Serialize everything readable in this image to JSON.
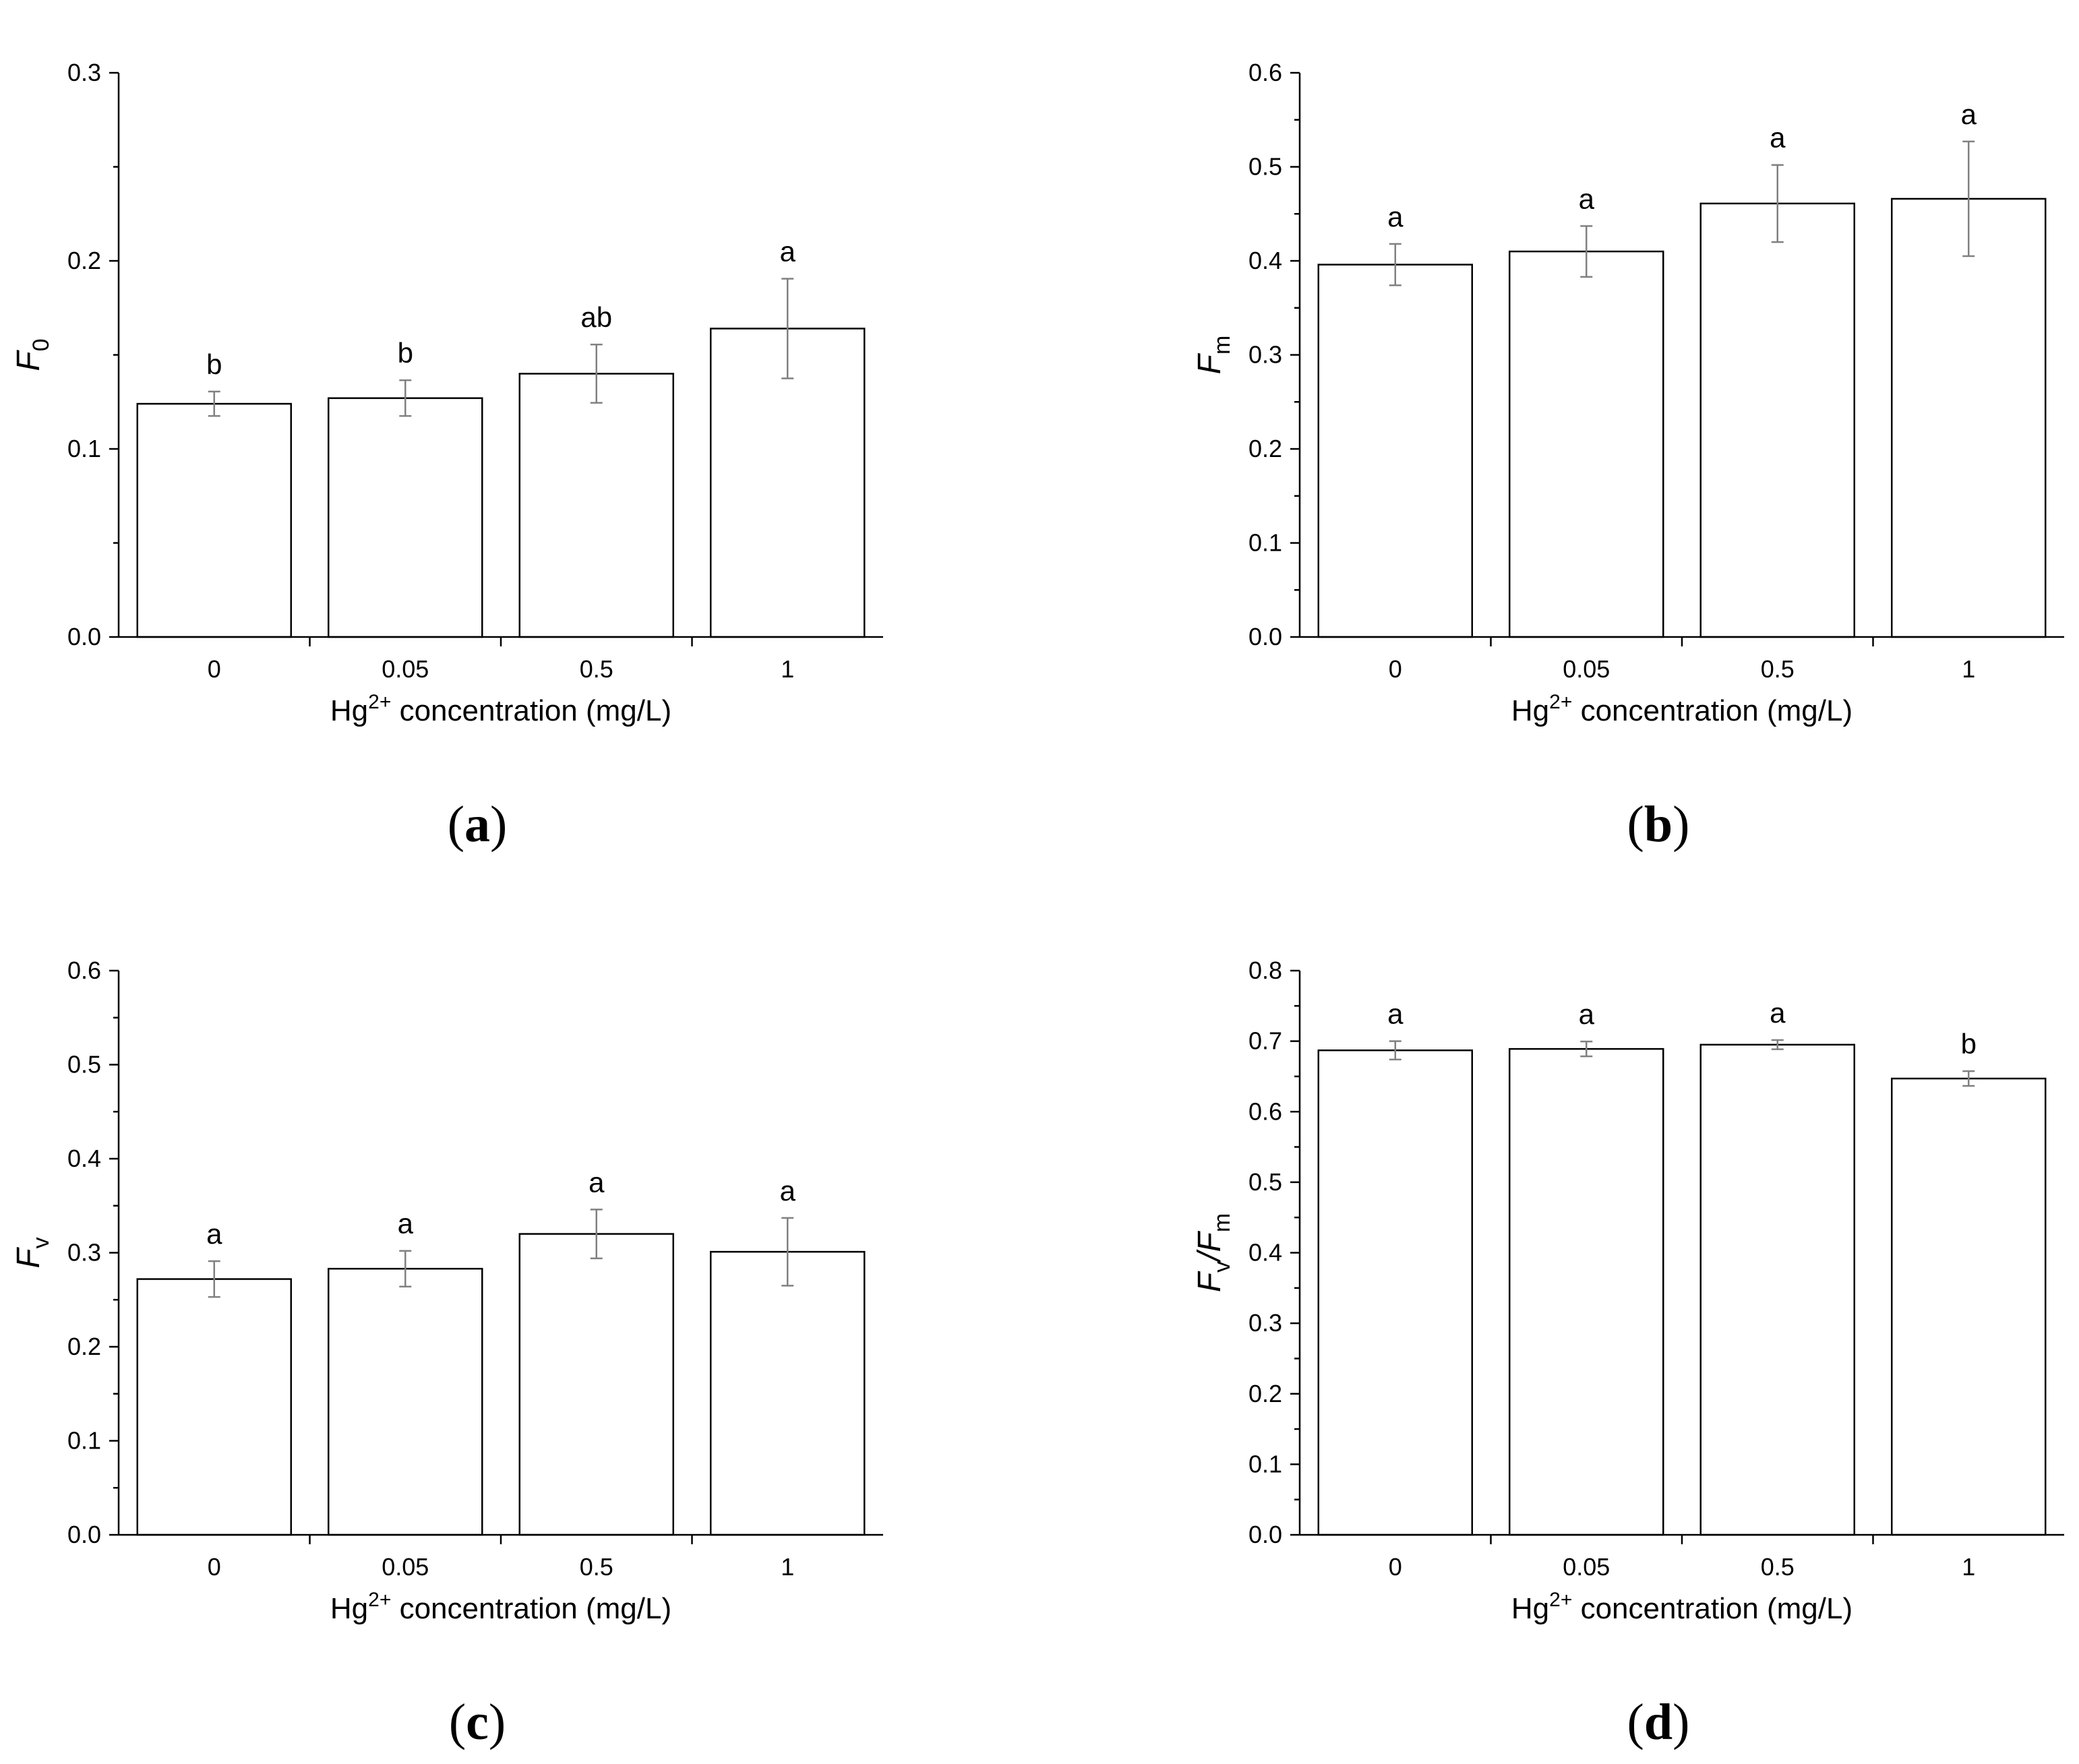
{
  "chart_data": [
    {
      "type": "bar",
      "panel_label": "a",
      "categories": [
        "0",
        "0.05",
        "0.5",
        "1"
      ],
      "values": [
        0.124,
        0.127,
        0.14,
        0.164
      ],
      "error": [
        0.0065,
        0.0095,
        0.0155,
        0.0265
      ],
      "significance": [
        "b",
        "b",
        "ab",
        "a"
      ],
      "ylabel_main": "F",
      "ylabel_sub": "0",
      "xlabel_pre": "Hg",
      "xlabel_sup": "2+",
      "xlabel_post": " concentration (mg/L)",
      "ylim": [
        0,
        0.3
      ],
      "yticks": [
        "0.0",
        "0.1",
        "0.2",
        "0.3"
      ]
    },
    {
      "type": "bar",
      "panel_label": "b",
      "categories": [
        "0",
        "0.05",
        "0.5",
        "1"
      ],
      "values": [
        0.396,
        0.41,
        0.461,
        0.466
      ],
      "error": [
        0.022,
        0.027,
        0.041,
        0.061
      ],
      "significance": [
        "a",
        "a",
        "a",
        "a"
      ],
      "ylabel_main": "F",
      "ylabel_sub": "m",
      "xlabel_pre": "Hg",
      "xlabel_sup": "2+",
      "xlabel_post": " concentration (mg/L)",
      "ylim": [
        0,
        0.6
      ],
      "yticks": [
        "0.0",
        "0.1",
        "0.2",
        "0.3",
        "0.4",
        "0.5",
        "0.6"
      ]
    },
    {
      "type": "bar",
      "panel_label": "c",
      "categories": [
        "0",
        "0.05",
        "0.5",
        "1"
      ],
      "values": [
        0.272,
        0.283,
        0.32,
        0.301
      ],
      "error": [
        0.019,
        0.019,
        0.026,
        0.036
      ],
      "significance": [
        "a",
        "a",
        "a",
        "a"
      ],
      "ylabel_main": "F",
      "ylabel_sub": "v",
      "xlabel_pre": "Hg",
      "xlabel_sup": "2+",
      "xlabel_post": " concentration (mg/L)",
      "ylim": [
        0,
        0.6
      ],
      "yticks": [
        "0.0",
        "0.1",
        "0.2",
        "0.3",
        "0.4",
        "0.5",
        "0.6"
      ]
    },
    {
      "type": "bar",
      "panel_label": "d",
      "categories": [
        "0",
        "0.05",
        "0.5",
        "1"
      ],
      "values": [
        0.687,
        0.689,
        0.695,
        0.647
      ],
      "error": [
        0.013,
        0.0105,
        0.0065,
        0.0105
      ],
      "significance": [
        "a",
        "a",
        "a",
        "b"
      ],
      "ylabel_main": "F",
      "ylabel_sub": "v",
      "ylabel_slash": "/F",
      "ylabel_sub2": "m",
      "xlabel_pre": "Hg",
      "xlabel_sup": "2+",
      "xlabel_post": " concentration (mg/L)",
      "ylim": [
        0,
        0.8
      ],
      "yticks": [
        "0.0",
        "0.1",
        "0.2",
        "0.3",
        "0.4",
        "0.5",
        "0.6",
        "0.7",
        "0.8"
      ]
    }
  ],
  "colors": {
    "bar_fill": "#ffffff",
    "bar_stroke": "#000000",
    "axis": "#000000",
    "error_bar": "#808080"
  }
}
